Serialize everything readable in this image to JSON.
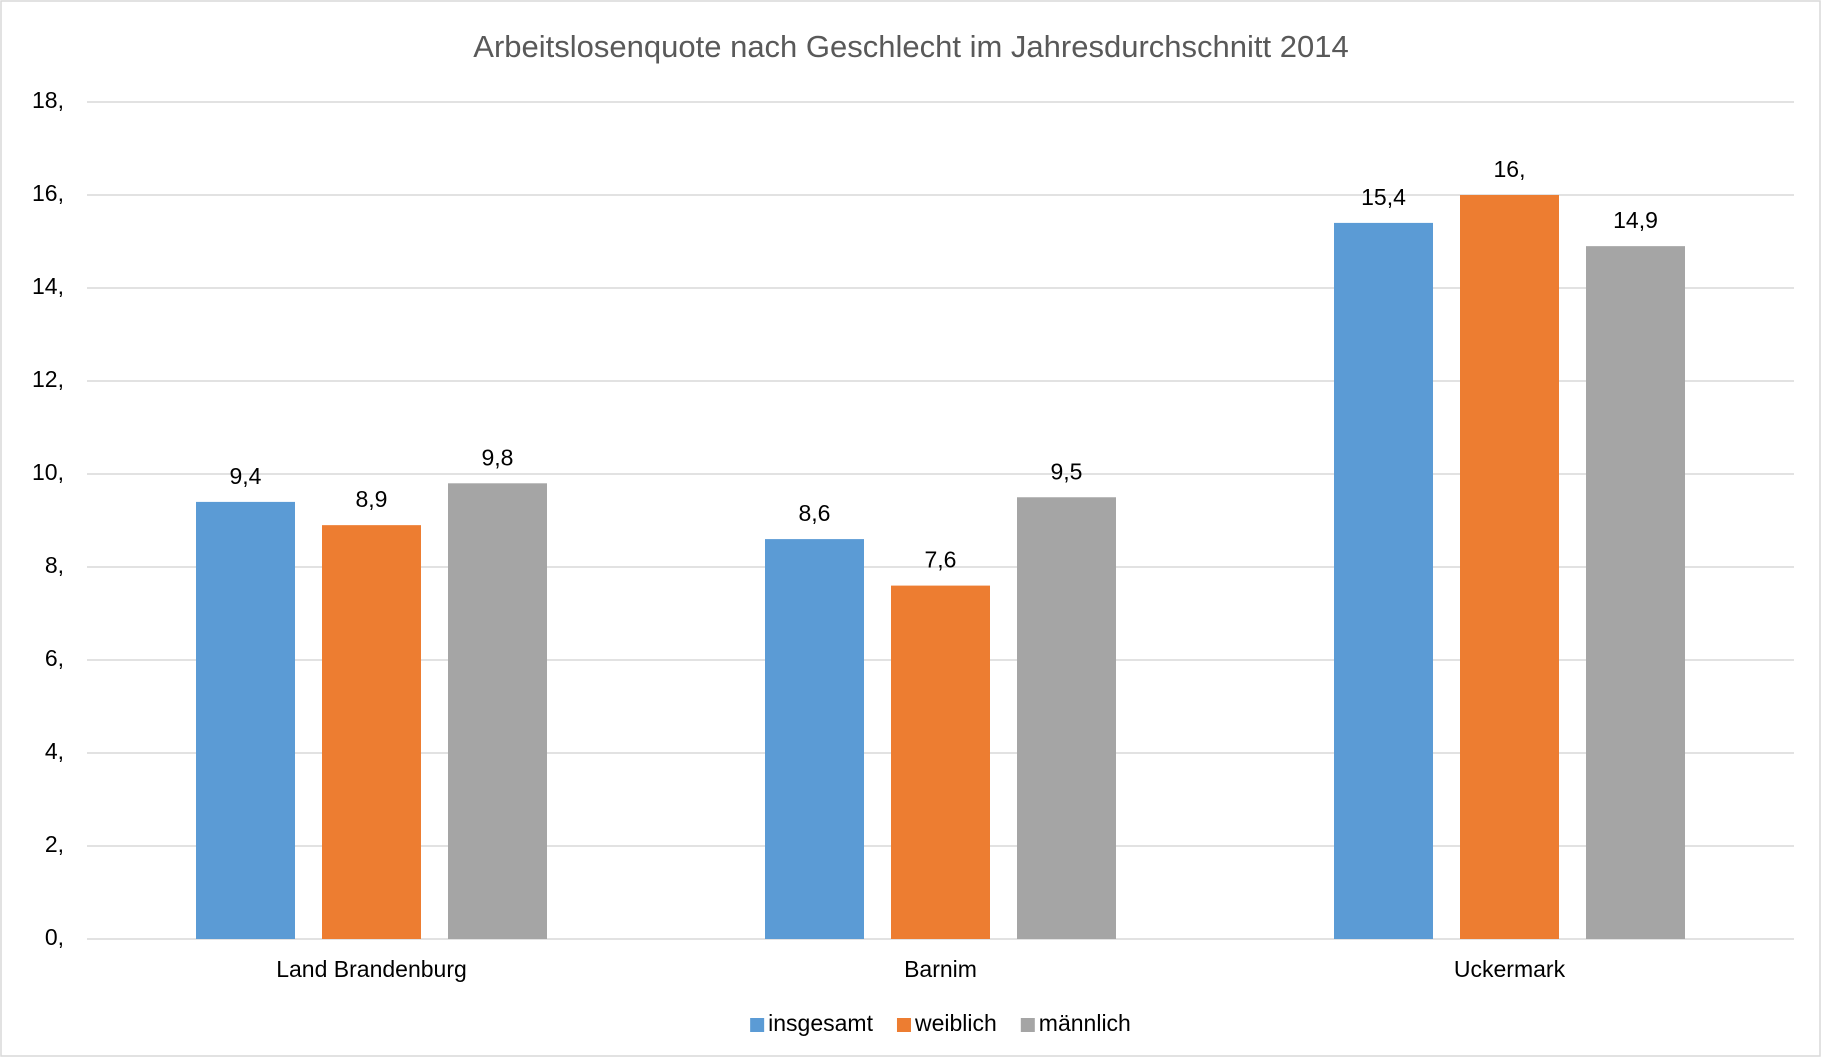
{
  "chart_data": {
    "type": "bar",
    "title": "Arbeitslosenquote nach Geschlecht im Jahresdurchschnitt 2014",
    "categories": [
      "Land Brandenburg",
      "Barnim",
      "Uckermark"
    ],
    "series": [
      {
        "name": "insgesamt",
        "color": "#5b9bd5",
        "values": [
          9.4,
          8.6,
          15.4
        ],
        "value_labels": [
          "9,4",
          "8,6",
          "15,4"
        ]
      },
      {
        "name": "weiblich",
        "color": "#ed7d31",
        "values": [
          8.9,
          7.6,
          16
        ],
        "value_labels": [
          "8,9",
          "7,6",
          "16,"
        ]
      },
      {
        "name": "männlich",
        "color": "#a5a5a5",
        "values": [
          9.8,
          9.5,
          14.9
        ],
        "value_labels": [
          "9,8",
          "9,5",
          "14,9"
        ]
      }
    ],
    "ylim": [
      0,
      18
    ],
    "yticks": [
      {
        "value": 0,
        "label": "0,"
      },
      {
        "value": 2,
        "label": "2,"
      },
      {
        "value": 4,
        "label": "4,"
      },
      {
        "value": 6,
        "label": "6,"
      },
      {
        "value": 8,
        "label": "8,"
      },
      {
        "value": 10,
        "label": "10,"
      },
      {
        "value": 12,
        "label": "12,"
      },
      {
        "value": 14,
        "label": "14,"
      },
      {
        "value": 16,
        "label": "16,"
      },
      {
        "value": 18,
        "label": "18,"
      }
    ],
    "grid": true,
    "legend": "bottom"
  }
}
